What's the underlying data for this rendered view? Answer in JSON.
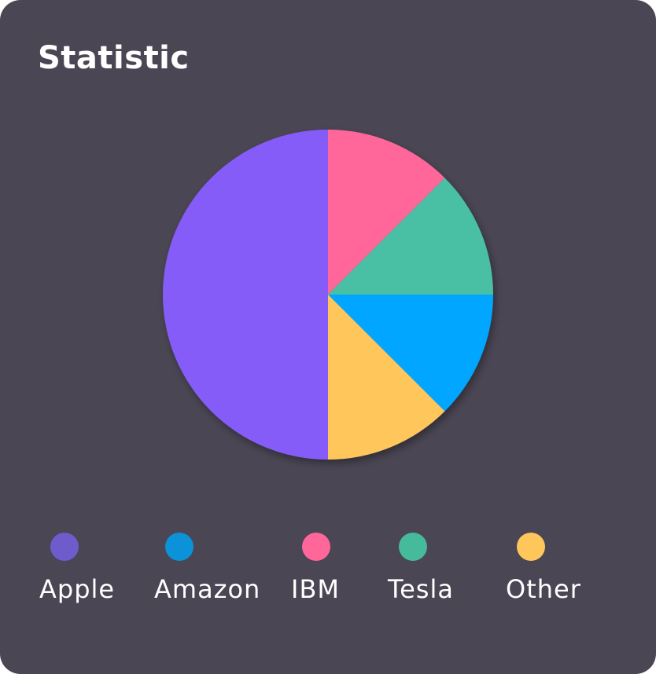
{
  "card": {
    "title": "Statistic"
  },
  "chart_data": {
    "type": "pie",
    "title": "Statistic",
    "legend_position": "bottom",
    "slices": [
      {
        "label": "Apple",
        "value": 50,
        "color": "#865cf8"
      },
      {
        "label": "Amazon",
        "value": 12.5,
        "color": "#00a6ff"
      },
      {
        "label": "IBM",
        "value": 12.5,
        "color": "#ff6699"
      },
      {
        "label": "Tesla",
        "value": 12.5,
        "color": "#4abfa3"
      },
      {
        "label": "Other",
        "value": 12.5,
        "color": "#ffc65c"
      }
    ]
  },
  "legend": [
    {
      "label": "Apple",
      "color": "#6f5ccc"
    },
    {
      "label": "Amazon",
      "color": "#0b92d9"
    },
    {
      "label": "IBM",
      "color": "#ff6699"
    },
    {
      "label": "Tesla",
      "color": "#45bb9c"
    },
    {
      "label": "Other",
      "color": "#ffc65c"
    }
  ]
}
